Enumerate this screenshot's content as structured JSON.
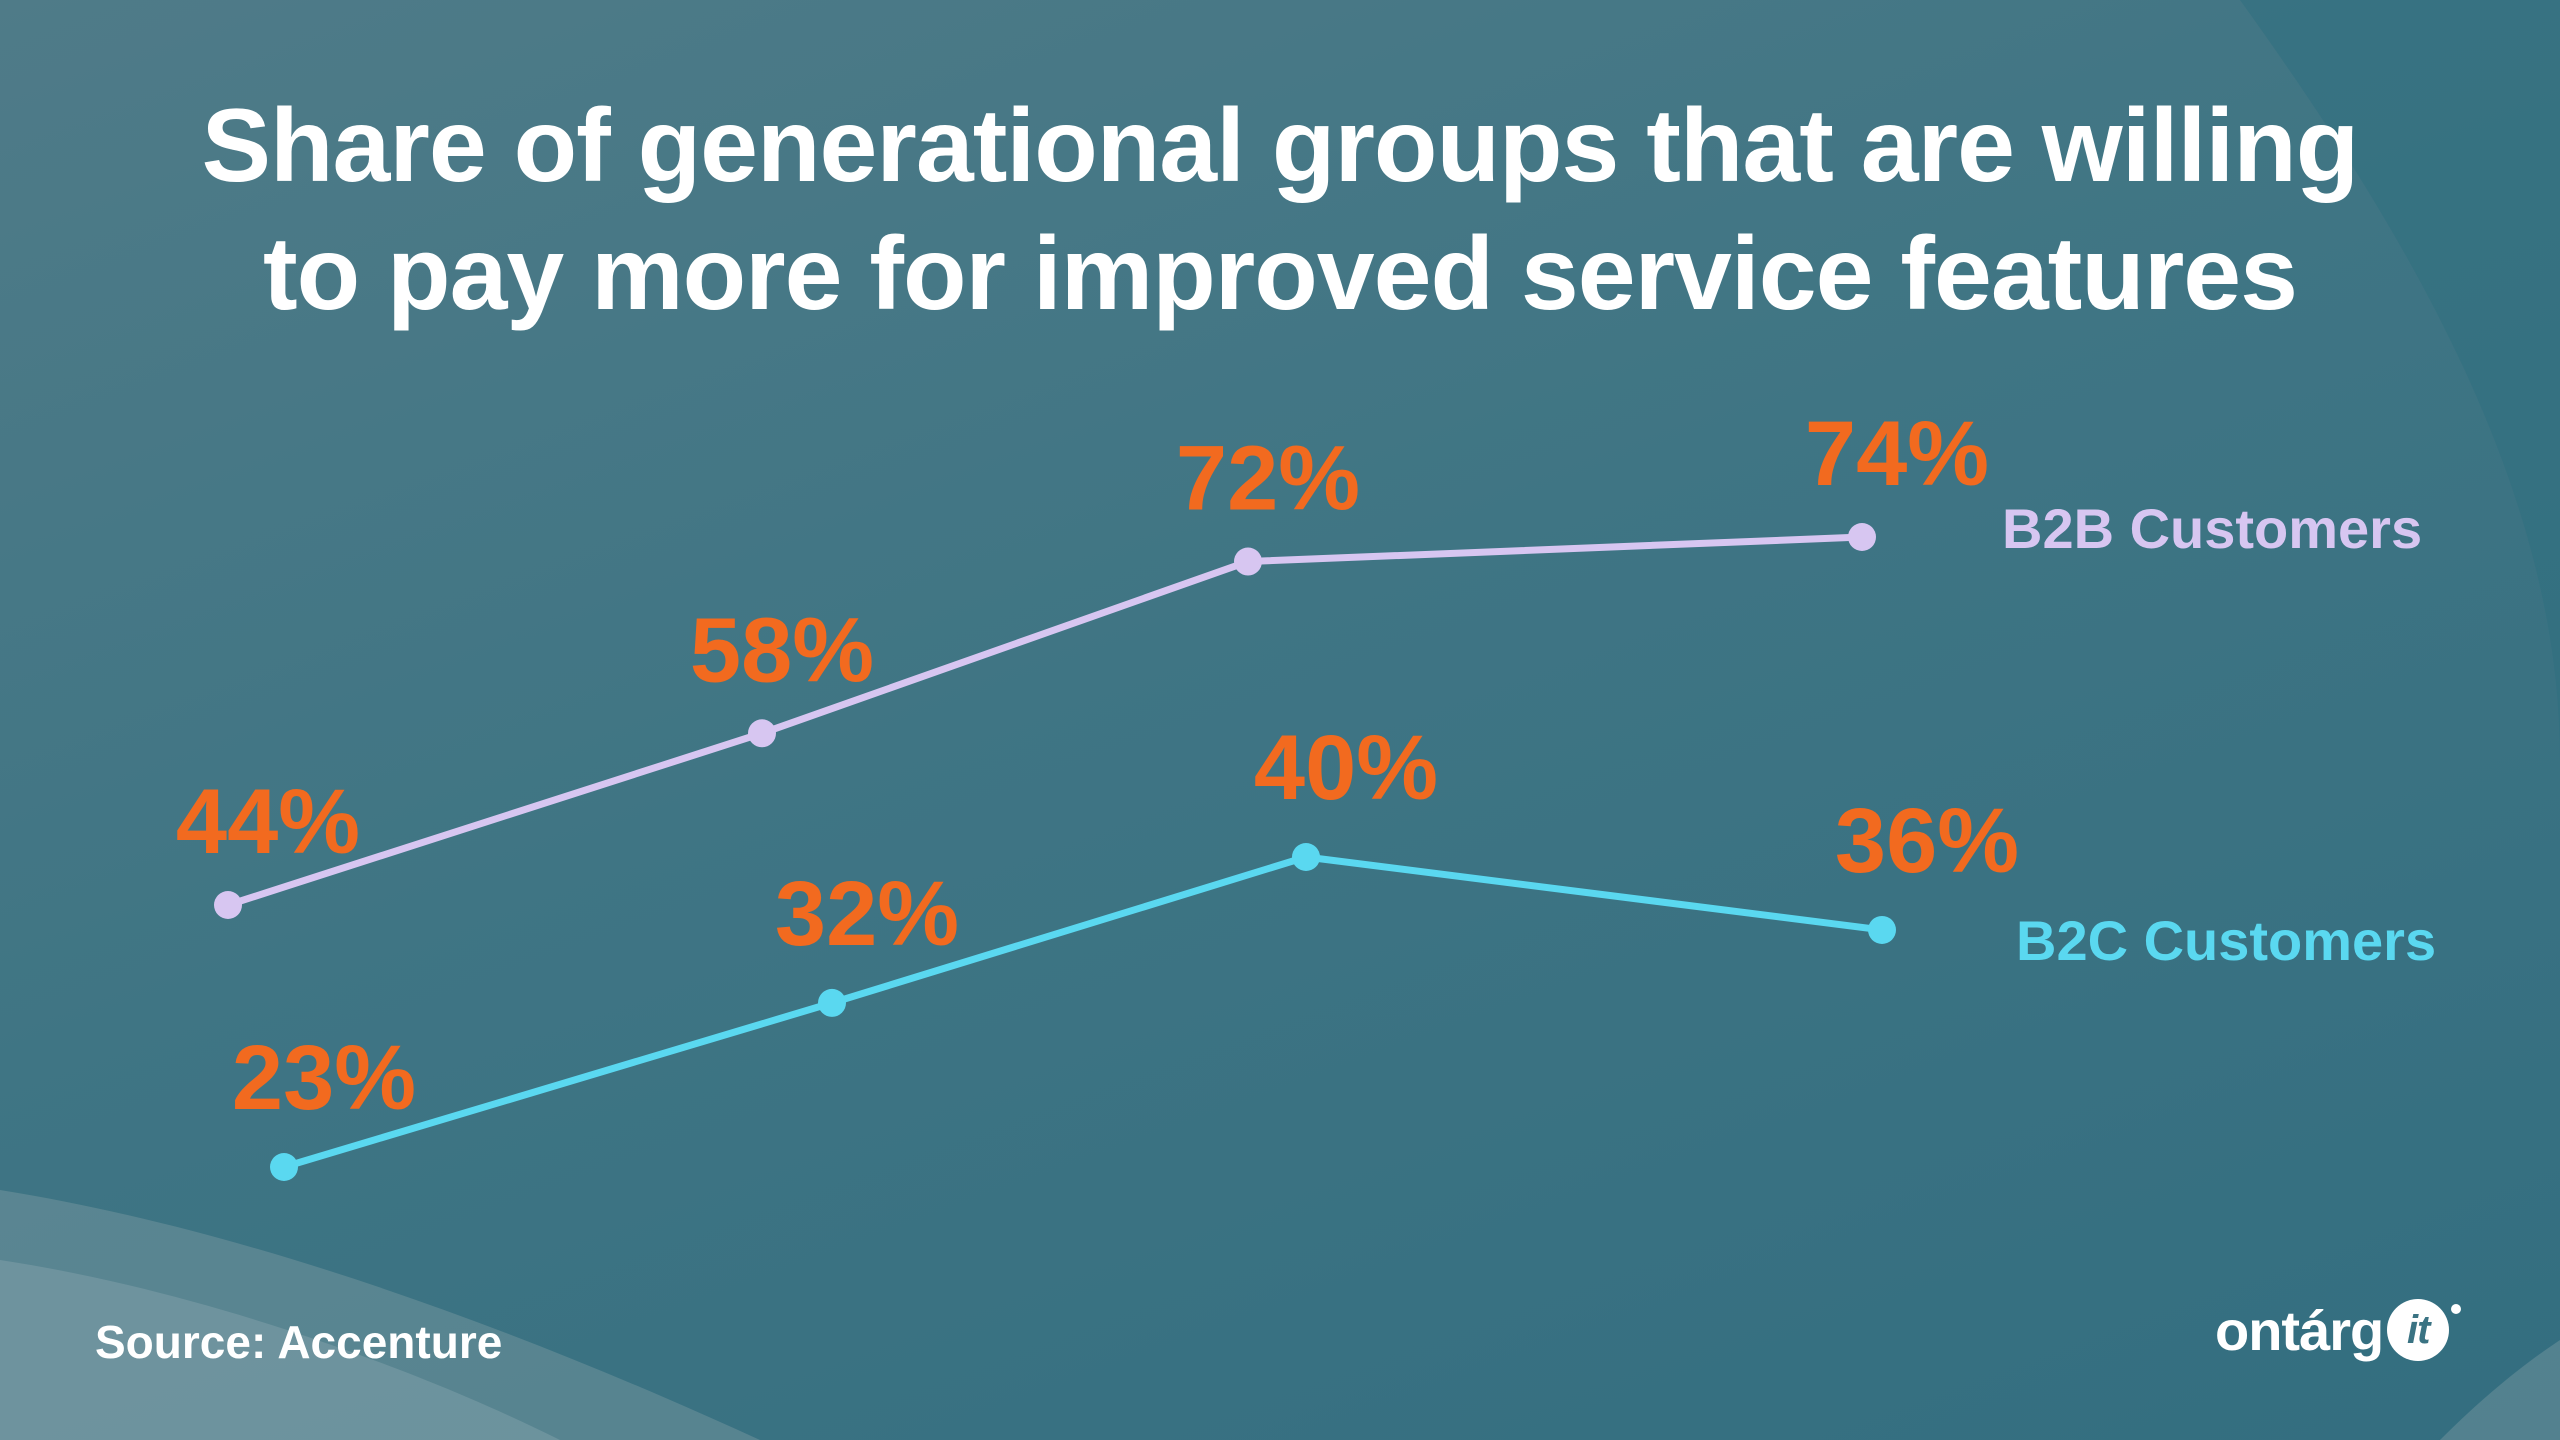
{
  "title_lines": [
    "Share of generational groups that are willing",
    "to pay more for improved service features"
  ],
  "source": "Source: Accenture",
  "logo": {
    "text": "ontárg",
    "badge": "it"
  },
  "colors": {
    "b2b": "#d7c6f1",
    "b2c": "#5ad8f0",
    "label": "#f26a1f"
  },
  "chart_data": {
    "type": "line",
    "title": "Share of generational groups that are willing to pay more for improved service features",
    "x": [
      1,
      2,
      3,
      4
    ],
    "series": [
      {
        "name": "B2B Customers",
        "values": [
          44,
          58,
          72,
          74
        ],
        "labels": [
          "44%",
          "58%",
          "72%",
          "74%"
        ]
      },
      {
        "name": "B2C Customers",
        "values": [
          23,
          32,
          40,
          36
        ],
        "labels": [
          "23%",
          "32%",
          "40%",
          "36%"
        ]
      }
    ],
    "xlabel": "",
    "ylabel": "",
    "grid": false,
    "legend": "right"
  }
}
